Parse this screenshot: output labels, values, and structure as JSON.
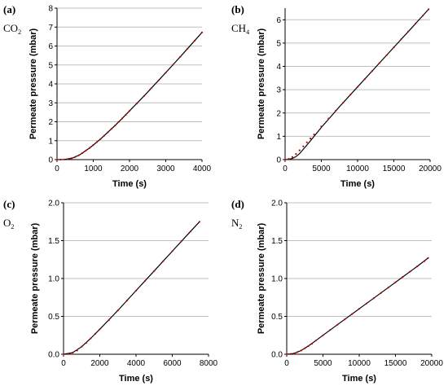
{
  "colors": {
    "fit_line": "#000000",
    "data_points": "#c00000",
    "grid": "#bfbfbf",
    "axis": "#000000"
  },
  "chart_data": [
    {
      "type": "line",
      "panel": "(a)",
      "gas": "CO",
      "gas_sub": "2",
      "xlabel": "Time (s)",
      "ylabel": "Permeate pressure (mbar)",
      "xlim": [
        0,
        4000
      ],
      "ylim": [
        0,
        8
      ],
      "xticks": [
        "0",
        "1000",
        "2000",
        "3000",
        "4000"
      ],
      "yticks": [
        "0",
        "1",
        "2",
        "3",
        "4",
        "5",
        "6",
        "7",
        "8"
      ],
      "grid": "horizontal",
      "series": [
        {
          "style": "dotted markers",
          "x": [
            0,
            100,
            200,
            300,
            400,
            500,
            600,
            700,
            800,
            900,
            1000,
            1100,
            1200,
            1300,
            1400,
            1500,
            1600,
            1700,
            1800,
            1900,
            2000,
            2200,
            2400,
            2600,
            2800,
            3000,
            3200,
            3400,
            3600,
            3800,
            4000
          ],
          "y": [
            0,
            0,
            0.01,
            0.03,
            0.07,
            0.14,
            0.23,
            0.35,
            0.48,
            0.62,
            0.77,
            0.93,
            1.09,
            1.26,
            1.44,
            1.62,
            1.8,
            1.99,
            2.18,
            2.37,
            2.57,
            2.96,
            3.36,
            3.77,
            4.18,
            4.59,
            5.01,
            5.43,
            5.86,
            6.28,
            6.72
          ]
        },
        {
          "style": "solid line",
          "x": [
            0,
            200,
            400,
            500,
            600,
            700,
            800,
            900,
            1000,
            1200,
            1400,
            1600,
            1800,
            2000,
            2400,
            2800,
            3200,
            3600,
            4000
          ],
          "y": [
            0,
            0.01,
            0.07,
            0.14,
            0.23,
            0.35,
            0.48,
            0.62,
            0.77,
            1.09,
            1.44,
            1.8,
            2.18,
            2.57,
            3.36,
            4.18,
            5.01,
            5.86,
            6.72
          ]
        }
      ]
    },
    {
      "type": "line",
      "panel": "(b)",
      "gas": "CH",
      "gas_sub": "4",
      "xlabel": "Time (s)",
      "ylabel": "Permeate pressure (mbar)",
      "xlim": [
        0,
        20000
      ],
      "ylim": [
        0,
        6.5
      ],
      "xticks": [
        "0",
        "5000",
        "10000",
        "15000",
        "20000"
      ],
      "yticks": [
        "0",
        "1",
        "2",
        "3",
        "4",
        "5",
        "6"
      ],
      "grid": "horizontal",
      "series": [
        {
          "style": "dotted markers",
          "x": [
            0,
            500,
            1000,
            1500,
            2000,
            2500,
            3000,
            3500,
            4000,
            5000,
            6000,
            7000,
            8000,
            9000,
            10000,
            11000,
            12000,
            13000,
            14000,
            15000,
            16000,
            17000,
            18000,
            19000,
            19800
          ],
          "y": [
            0,
            0.03,
            0.11,
            0.24,
            0.4,
            0.57,
            0.74,
            0.91,
            1.08,
            1.42,
            1.76,
            2.1,
            2.44,
            2.78,
            3.12,
            3.46,
            3.8,
            4.14,
            4.48,
            4.82,
            5.16,
            5.5,
            5.84,
            6.18,
            6.45
          ]
        },
        {
          "style": "solid line",
          "x": [
            0,
            500,
            1000,
            1500,
            2000,
            3000,
            4000,
            5000,
            7500,
            10000,
            12500,
            15000,
            17500,
            19800
          ],
          "y": [
            0,
            0.01,
            0.05,
            0.13,
            0.26,
            0.62,
            1.0,
            1.38,
            2.27,
            3.12,
            3.97,
            4.82,
            5.67,
            6.45
          ]
        }
      ]
    },
    {
      "type": "line",
      "panel": "(c)",
      "gas": "O",
      "gas_sub": "2",
      "xlabel": "Time (s)",
      "ylabel": "Permeate pressure (mbar)",
      "xlim": [
        0,
        8000
      ],
      "ylim": [
        0,
        2.0
      ],
      "xticks": [
        "0",
        "2000",
        "4000",
        "6000",
        "8000"
      ],
      "yticks": [
        "0.0",
        "0.5",
        "1.0",
        "1.5",
        "2.0"
      ],
      "grid": "horizontal",
      "series": [
        {
          "style": "dotted markers",
          "x": [
            0,
            250,
            500,
            750,
            1000,
            1250,
            1500,
            1750,
            2000,
            2500,
            3000,
            3500,
            4000,
            4500,
            5000,
            5500,
            6000,
            6500,
            7000,
            7500
          ],
          "y": [
            0,
            0.003,
            0.02,
            0.05,
            0.1,
            0.15,
            0.21,
            0.27,
            0.33,
            0.45,
            0.58,
            0.71,
            0.84,
            0.97,
            1.1,
            1.23,
            1.36,
            1.49,
            1.62,
            1.75
          ]
        },
        {
          "style": "solid line",
          "x": [
            0,
            500,
            1000,
            1500,
            2000,
            3000,
            4000,
            5000,
            6000,
            7000,
            7500
          ],
          "y": [
            0,
            0.02,
            0.1,
            0.21,
            0.33,
            0.58,
            0.84,
            1.1,
            1.36,
            1.62,
            1.75
          ]
        }
      ]
    },
    {
      "type": "line",
      "panel": "(d)",
      "gas": "N",
      "gas_sub": "2",
      "xlabel": "Time (s)",
      "ylabel": "Permeate pressure (mbar)",
      "xlim": [
        0,
        20000
      ],
      "ylim": [
        0,
        2.0
      ],
      "xticks": [
        "0",
        "5000",
        "10000",
        "15000",
        "20000"
      ],
      "yticks": [
        "0.0",
        "0.5",
        "1.0",
        "1.5",
        "2.0"
      ],
      "grid": "horizontal",
      "series": [
        {
          "style": "dotted markers",
          "x": [
            0,
            500,
            1000,
            1500,
            2000,
            2500,
            3000,
            3500,
            4000,
            5000,
            6000,
            7000,
            8000,
            9000,
            10000,
            11000,
            12000,
            13000,
            14000,
            15000,
            16000,
            17000,
            18000,
            19000,
            19500
          ],
          "y": [
            0,
            0.002,
            0.01,
            0.03,
            0.05,
            0.08,
            0.11,
            0.14,
            0.18,
            0.25,
            0.32,
            0.39,
            0.46,
            0.53,
            0.6,
            0.67,
            0.74,
            0.81,
            0.88,
            0.95,
            1.02,
            1.09,
            1.16,
            1.23,
            1.27
          ]
        },
        {
          "style": "solid line",
          "x": [
            0,
            1000,
            2000,
            3000,
            4000,
            6000,
            8000,
            10000,
            12000,
            14000,
            16000,
            18000,
            19500
          ],
          "y": [
            0,
            0.01,
            0.05,
            0.11,
            0.18,
            0.32,
            0.46,
            0.6,
            0.74,
            0.88,
            1.02,
            1.16,
            1.27
          ]
        }
      ]
    }
  ]
}
